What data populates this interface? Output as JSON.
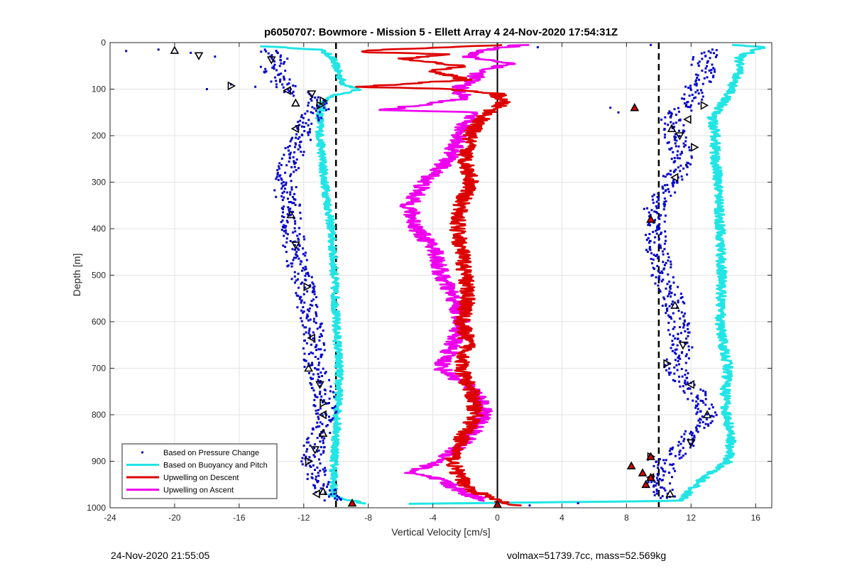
{
  "chart_data": {
    "type": "scatter",
    "title": "p6050707: Bowmore - Mission 5 - Ellett Array 4 24-Nov-2020 17:54:31Z",
    "xlabel": "Vertical Velocity [cm/s]",
    "ylabel": "Depth [m]",
    "xlim": [
      -24,
      17
    ],
    "ylim": [
      0,
      1000
    ],
    "y_reversed": true,
    "grid": true,
    "legend_position": "bottom-left",
    "xticks": [
      -24,
      -20,
      -16,
      -12,
      -8,
      -4,
      0,
      4,
      8,
      12,
      16
    ],
    "yticks": [
      0,
      100,
      200,
      300,
      400,
      500,
      600,
      700,
      800,
      900,
      1000
    ],
    "reference_lines": {
      "zero_x": 0,
      "dashed_x": [
        -10,
        10
      ]
    },
    "series": [
      {
        "name": "Based on Pressure Change",
        "style": "dots",
        "color": "#0000cc",
        "descent_profile": {
          "depth": [
            15,
            30,
            50,
            80,
            100,
            120,
            140,
            160,
            190,
            250,
            300,
            370,
            440,
            520,
            600,
            700,
            760,
            800,
            850,
            900,
            950,
            985
          ],
          "velocity": [
            -14.5,
            -13.5,
            -14,
            -13.5,
            -13,
            -11.5,
            -11,
            -11.5,
            -12,
            -12.8,
            -13.2,
            -12.8,
            -12.6,
            -12,
            -11.5,
            -11.3,
            -10.8,
            -10.6,
            -11.2,
            -11.5,
            -11,
            -10
          ]
        },
        "ascent_profile": {
          "depth": [
            15,
            40,
            70,
            100,
            130,
            160,
            200,
            250,
            300,
            350,
            400,
            450,
            500,
            550,
            600,
            650,
            700,
            750,
            800,
            850,
            900,
            950,
            980
          ],
          "velocity": [
            13.5,
            12.5,
            13,
            12.2,
            12,
            10.8,
            11,
            11.5,
            10.8,
            9.8,
            9.7,
            9.9,
            10.2,
            10.8,
            11.2,
            11.4,
            11,
            12.2,
            13,
            12,
            10.5,
            10,
            10.5
          ]
        },
        "outliers": [
          {
            "x": -23,
            "y": 18
          },
          {
            "x": -21,
            "y": 15
          },
          {
            "x": -19,
            "y": 22
          },
          {
            "x": -17.5,
            "y": 30
          },
          {
            "x": -16.5,
            "y": 90
          },
          {
            "x": -15,
            "y": 95
          },
          {
            "x": -18,
            "y": 100
          },
          {
            "x": 7,
            "y": 140
          },
          {
            "x": 7.5,
            "y": 150
          },
          {
            "x": 2.5,
            "y": 10
          },
          {
            "x": 9.5,
            "y": 5
          },
          {
            "x": 2,
            "y": 995
          },
          {
            "x": 5,
            "y": 990
          }
        ]
      },
      {
        "name": "Based on Buoyancy and Pitch",
        "style": "line",
        "color": "#22e5e5",
        "descent_profile": {
          "depth": [
            8,
            15,
            30,
            50,
            70,
            90,
            100,
            115,
            130,
            160,
            200,
            300,
            400,
            500,
            600,
            700,
            800,
            900,
            975,
            985,
            992
          ],
          "velocity": [
            -14.5,
            -11,
            -10.3,
            -10,
            -9.8,
            -9.5,
            -8.5,
            -10.3,
            -10.8,
            -11,
            -11,
            -10.7,
            -10.3,
            -10.1,
            -10,
            -9.8,
            -9.9,
            -10.1,
            -10.2,
            -9,
            -8
          ]
        },
        "ascent_profile": {
          "depth": [
            992,
            985,
            960,
            930,
            900,
            850,
            800,
            750,
            700,
            650,
            600,
            500,
            400,
            300,
            250,
            200,
            160,
            140,
            100,
            60,
            30,
            10,
            5
          ],
          "velocity": [
            -7,
            11.5,
            12,
            13,
            14.3,
            14.5,
            14.2,
            14.1,
            14.3,
            14,
            13.8,
            13.9,
            13.8,
            13.7,
            13.5,
            13.5,
            13.3,
            13.8,
            14.5,
            15,
            15,
            16.5,
            14.5
          ]
        }
      },
      {
        "name": "Upwelling on Descent",
        "style": "line",
        "color": "#dd0000",
        "profile": {
          "depth": [
            5,
            15,
            20,
            25,
            35,
            50,
            60,
            80,
            95,
            100,
            110,
            130,
            150,
            170,
            200,
            250,
            300,
            350,
            400,
            450,
            500,
            550,
            600,
            650,
            700,
            750,
            800,
            850,
            900,
            930,
            960,
            985,
            995
          ],
          "velocity": [
            0.5,
            -7,
            -8.8,
            -3,
            -6,
            -2,
            -4,
            -2,
            -8.5,
            -3,
            0,
            0.3,
            -0.5,
            -1.2,
            -1.7,
            -2,
            -1.6,
            -2.3,
            -2.5,
            -2.2,
            -2,
            -1.8,
            -2.2,
            -1.8,
            -2.3,
            -1.6,
            -1.3,
            -2.2,
            -2.8,
            -2.4,
            -1.7,
            0,
            1
          ]
        }
      },
      {
        "name": "Upwelling on Ascent",
        "style": "line",
        "color": "#ee00ee",
        "profile": {
          "depth": [
            5,
            15,
            30,
            45,
            60,
            80,
            100,
            120,
            145,
            150,
            170,
            200,
            250,
            300,
            350,
            400,
            450,
            500,
            550,
            600,
            650,
            700,
            750,
            800,
            850,
            900,
            925,
            940,
            960,
            975,
            985
          ],
          "velocity": [
            1.5,
            -0.5,
            -2,
            1,
            -1,
            -1.5,
            -2.5,
            -2,
            -7,
            -1.5,
            -2,
            -2.3,
            -3,
            -4.5,
            -5.5,
            -5,
            -3.8,
            -3.5,
            -2.7,
            -2.2,
            -2.8,
            -3.5,
            -1.3,
            -0.8,
            -1.8,
            -3.5,
            -5.5,
            -3.5,
            -2.5,
            -1.5,
            -0.5
          ]
        }
      }
    ],
    "markers": {
      "descent_triangles": [
        {
          "x": -20,
          "y": 17
        },
        {
          "x": -18.5,
          "y": 28
        },
        {
          "x": -16.5,
          "y": 93
        },
        {
          "x": -13,
          "y": 103
        },
        {
          "x": -12.5,
          "y": 130
        },
        {
          "x": -11.5,
          "y": 110
        },
        {
          "x": -11,
          "y": 135
        },
        {
          "x": -12.5,
          "y": 185
        },
        {
          "x": -12.8,
          "y": 370
        },
        {
          "x": -12.5,
          "y": 435
        },
        {
          "x": -11.8,
          "y": 525
        },
        {
          "x": -11.5,
          "y": 635
        },
        {
          "x": -11.7,
          "y": 700
        },
        {
          "x": -11,
          "y": 735
        },
        {
          "x": -10.8,
          "y": 775
        },
        {
          "x": -10.8,
          "y": 800
        },
        {
          "x": -10.8,
          "y": 840
        },
        {
          "x": -11.3,
          "y": 875
        },
        {
          "x": -11.7,
          "y": 900
        },
        {
          "x": -11.2,
          "y": 970
        },
        {
          "x": -10.8,
          "y": 965
        },
        {
          "x": -14,
          "y": 37
        },
        {
          "x": -10.8,
          "y": 125
        }
      ],
      "ascent_triangles": [
        {
          "x": 12.8,
          "y": 135
        },
        {
          "x": 11.8,
          "y": 165
        },
        {
          "x": 10.8,
          "y": 185
        },
        {
          "x": 11.3,
          "y": 200
        },
        {
          "x": 12.2,
          "y": 225
        },
        {
          "x": 11,
          "y": 290
        },
        {
          "x": 11,
          "y": 565
        },
        {
          "x": 11.5,
          "y": 650
        },
        {
          "x": 10.5,
          "y": 690
        },
        {
          "x": 12,
          "y": 735
        },
        {
          "x": 13,
          "y": 800
        },
        {
          "x": 12,
          "y": 860
        },
        {
          "x": 9.5,
          "y": 890
        },
        {
          "x": 9.5,
          "y": 935
        },
        {
          "x": 10.7,
          "y": 970
        }
      ],
      "red_triangles": [
        {
          "x": 8.5,
          "y": 140
        },
        {
          "x": 9.5,
          "y": 380
        },
        {
          "x": 9.5,
          "y": 890
        },
        {
          "x": 8.3,
          "y": 910
        },
        {
          "x": 9,
          "y": 925
        },
        {
          "x": 9.5,
          "y": 935
        },
        {
          "x": 9.2,
          "y": 950
        },
        {
          "x": -9,
          "y": 990
        },
        {
          "x": 0,
          "y": 993
        }
      ]
    }
  },
  "footer": {
    "timestamp": "24-Nov-2020 21:55:05",
    "glider_info": "volmax=51739.7cc, mass=52.569kg"
  }
}
